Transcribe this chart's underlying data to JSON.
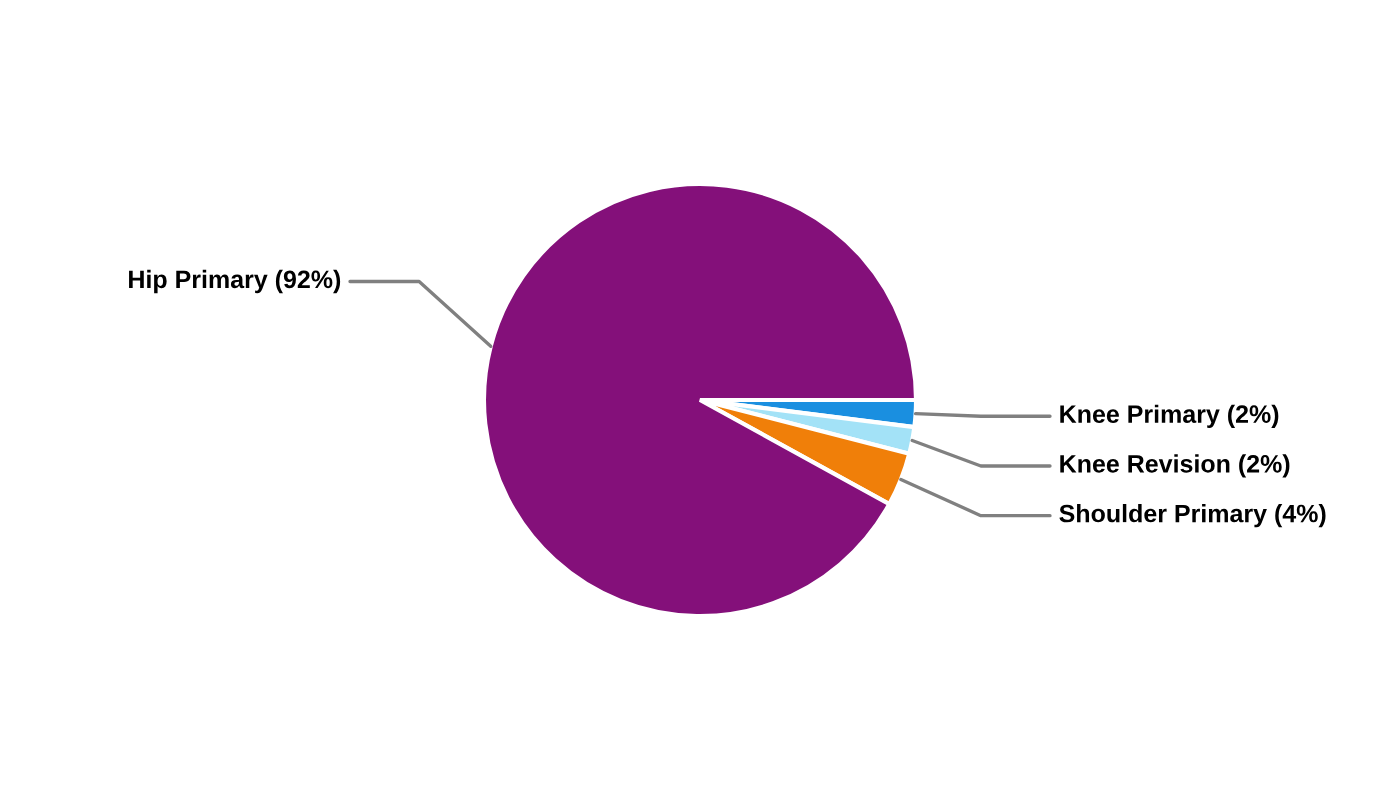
{
  "chart_data": {
    "type": "pie",
    "categories": [
      "Knee Primary (2%)",
      "Knee Revision (2%)",
      "Shoulder Primary (4%)",
      "Hip Primary (92%)"
    ],
    "values": [
      2,
      2,
      4,
      92
    ],
    "colors": [
      "#1a8fe0",
      "#a3e2f7",
      "#f07f09",
      "#84107a"
    ],
    "legend": false
  }
}
